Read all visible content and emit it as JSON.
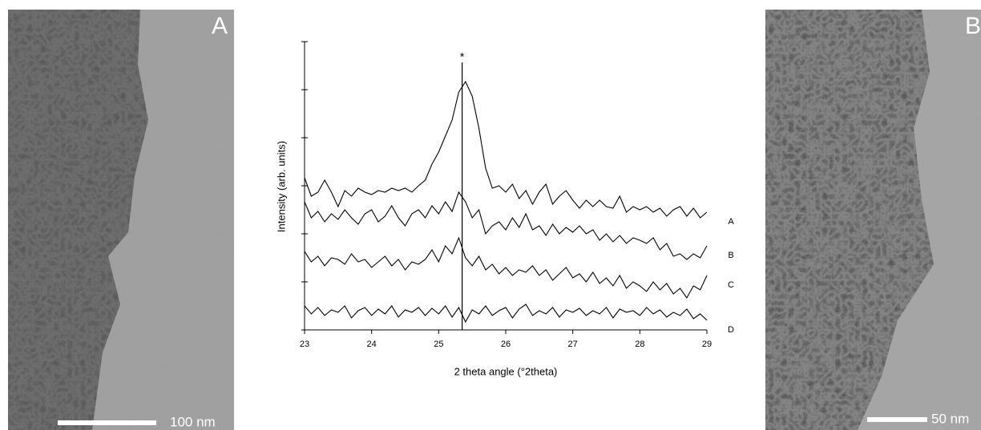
{
  "images": [
    {
      "label": "A",
      "scale_bar": "100 nm"
    },
    {
      "label": "B",
      "scale_bar": "50 nm"
    }
  ],
  "chart_data": {
    "type": "line",
    "x_label": "2 theta angle (°2theta)",
    "y_label": "Intensity (arb. units)",
    "annotation": {
      "x": 25.35,
      "label": "*"
    },
    "xlim": [
      23,
      29
    ],
    "xticks": [
      23,
      24,
      25,
      26,
      27,
      28,
      29
    ],
    "ylim": [
      0,
      360
    ],
    "yticks": [
      0,
      60,
      120,
      180,
      240,
      300,
      360
    ],
    "y_tick_labels": false,
    "x": [
      23,
      23.1,
      23.2,
      23.3,
      23.4,
      23.5,
      23.6,
      23.7,
      23.8,
      23.9,
      24,
      24.1,
      24.2,
      24.3,
      24.4,
      24.5,
      24.6,
      24.7,
      24.8,
      24.9,
      25,
      25.1,
      25.2,
      25.3,
      25.4,
      25.5,
      25.6,
      25.7,
      25.8,
      25.9,
      26,
      26.1,
      26.2,
      26.3,
      26.4,
      26.5,
      26.6,
      26.7,
      26.8,
      26.9,
      27,
      27.1,
      27.2,
      27.3,
      27.4,
      27.5,
      27.6,
      27.7,
      27.8,
      27.9,
      28,
      28.1,
      28.2,
      28.3,
      28.4,
      28.5,
      28.6,
      28.7,
      28.8,
      28.9,
      29
    ],
    "series": [
      {
        "name": "A",
        "color": "#000000",
        "values": [
          190,
          167,
          172,
          187,
          172,
          154,
          174,
          167,
          177,
          172,
          169,
          174,
          172,
          177,
          174,
          177,
          172,
          180,
          187,
          207,
          222,
          242,
          262,
          297,
          310,
          292,
          252,
          202,
          177,
          180,
          172,
          182,
          164,
          174,
          157,
          172,
          182,
          157,
          167,
          174,
          162,
          152,
          162,
          154,
          162,
          154,
          152,
          167,
          147,
          154,
          150,
          154,
          147,
          152,
          142,
          150,
          154,
          142,
          152,
          140,
          147
        ]
      },
      {
        "name": "B",
        "color": "#000000",
        "values": [
          160,
          140,
          148,
          135,
          145,
          138,
          150,
          140,
          132,
          145,
          150,
          135,
          142,
          155,
          140,
          130,
          145,
          150,
          140,
          155,
          145,
          160,
          148,
          172,
          160,
          140,
          150,
          120,
          130,
          135,
          125,
          140,
          128,
          145,
          125,
          130,
          118,
          132,
          120,
          128,
          122,
          130,
          120,
          125,
          112,
          120,
          110,
          118,
          108,
          115,
          112,
          108,
          115,
          100,
          108,
          92,
          95,
          88,
          95,
          90,
          105
        ]
      },
      {
        "name": "C",
        "color": "#000000",
        "values": [
          98,
          85,
          92,
          80,
          90,
          88,
          82,
          95,
          85,
          88,
          78,
          85,
          92,
          80,
          88,
          75,
          85,
          82,
          88,
          100,
          85,
          105,
          95,
          115,
          90,
          80,
          92,
          75,
          82,
          70,
          78,
          68,
          75,
          72,
          80,
          68,
          75,
          62,
          70,
          78,
          65,
          70,
          60,
          72,
          58,
          65,
          55,
          68,
          52,
          60,
          55,
          48,
          60,
          50,
          58,
          45,
          52,
          40,
          55,
          50,
          68
        ]
      },
      {
        "name": "D",
        "color": "#000000",
        "values": [
          30,
          20,
          28,
          18,
          25,
          22,
          30,
          15,
          24,
          28,
          18,
          26,
          20,
          30,
          16,
          25,
          22,
          28,
          18,
          27,
          20,
          30,
          16,
          28,
          10,
          25,
          20,
          30,
          18,
          24,
          28,
          15,
          26,
          32,
          18,
          24,
          20,
          28,
          16,
          25,
          22,
          27,
          18,
          24,
          20,
          28,
          15,
          26,
          22,
          24,
          18,
          28,
          20,
          25,
          16,
          22,
          18,
          26,
          14,
          20,
          12
        ]
      }
    ]
  }
}
